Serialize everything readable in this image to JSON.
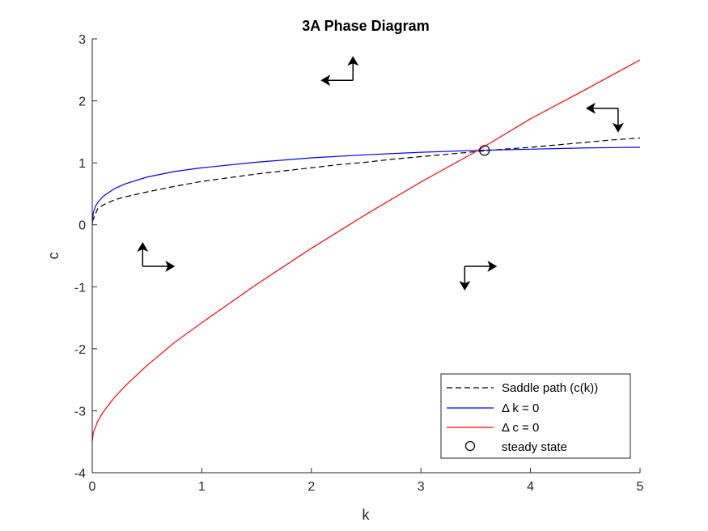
{
  "chart_data": {
    "type": "line",
    "title": "3A Phase Diagram",
    "xlabel": "k",
    "ylabel": "c",
    "xlim": [
      0,
      5
    ],
    "ylim": [
      -4,
      3
    ],
    "xticks": [
      0,
      1,
      2,
      3,
      4,
      5
    ],
    "yticks": [
      -4,
      -3,
      -2,
      -1,
      0,
      1,
      2,
      3
    ],
    "xtick_labels": [
      "0",
      "1",
      "2",
      "3",
      "4",
      "5"
    ],
    "ytick_labels": [
      "-4",
      "-3",
      "-2",
      "-1",
      "0",
      "1",
      "2",
      "3"
    ],
    "grid": false,
    "legend_position": "bottom-right",
    "series": [
      {
        "name": "Saddle path (c(k))",
        "color": "#000000",
        "style": "dashed",
        "x": [
          0.0,
          0.05,
          0.1,
          0.2,
          0.3,
          0.5,
          0.75,
          1.0,
          1.25,
          1.5,
          1.75,
          2.0,
          2.25,
          2.5,
          2.75,
          3.0,
          3.25,
          3.5,
          3.75,
          4.0,
          4.25,
          4.5,
          4.75,
          5.0
        ],
        "y": [
          0.05,
          0.26,
          0.32,
          0.4,
          0.45,
          0.53,
          0.62,
          0.7,
          0.76,
          0.82,
          0.87,
          0.92,
          0.97,
          1.01,
          1.06,
          1.1,
          1.14,
          1.18,
          1.22,
          1.25,
          1.29,
          1.33,
          1.37,
          1.4
        ]
      },
      {
        "name": "Δ k = 0",
        "color": "#0000ff",
        "style": "solid",
        "x": [
          0.0,
          0.01,
          0.03,
          0.05,
          0.1,
          0.2,
          0.3,
          0.5,
          0.75,
          1.0,
          1.5,
          2.0,
          2.5,
          3.0,
          3.5,
          4.0,
          4.5,
          5.0
        ],
        "y": [
          0.0,
          0.2,
          0.3,
          0.36,
          0.46,
          0.58,
          0.66,
          0.77,
          0.86,
          0.92,
          1.01,
          1.08,
          1.13,
          1.17,
          1.2,
          1.22,
          1.24,
          1.25
        ]
      },
      {
        "name": "Δ c = 0",
        "color": "#ff0000",
        "style": "solid",
        "x": [
          0.0,
          0.01,
          0.05,
          0.1,
          0.2,
          0.3,
          0.5,
          0.75,
          1.0,
          1.5,
          2.0,
          2.5,
          3.0,
          3.5,
          4.0,
          4.5,
          5.0
        ],
        "y": [
          -3.5,
          -3.35,
          -3.17,
          -3.02,
          -2.79,
          -2.6,
          -2.27,
          -1.9,
          -1.58,
          -0.96,
          -0.38,
          0.17,
          0.69,
          1.18,
          1.71,
          2.18,
          2.66
        ]
      }
    ],
    "steady_state": {
      "name": "steady state",
      "k": 3.58,
      "c": 1.2
    },
    "arrows": [
      {
        "x": 2.38,
        "y": 2.33,
        "dx": -1,
        "dy": 1
      },
      {
        "x": 4.8,
        "y": 1.88,
        "dx": -1,
        "dy": -1
      },
      {
        "x": 0.46,
        "y": -0.67,
        "dx": 1,
        "dy": 1
      },
      {
        "x": 3.4,
        "y": -0.67,
        "dx": 1,
        "dy": -1
      }
    ]
  }
}
